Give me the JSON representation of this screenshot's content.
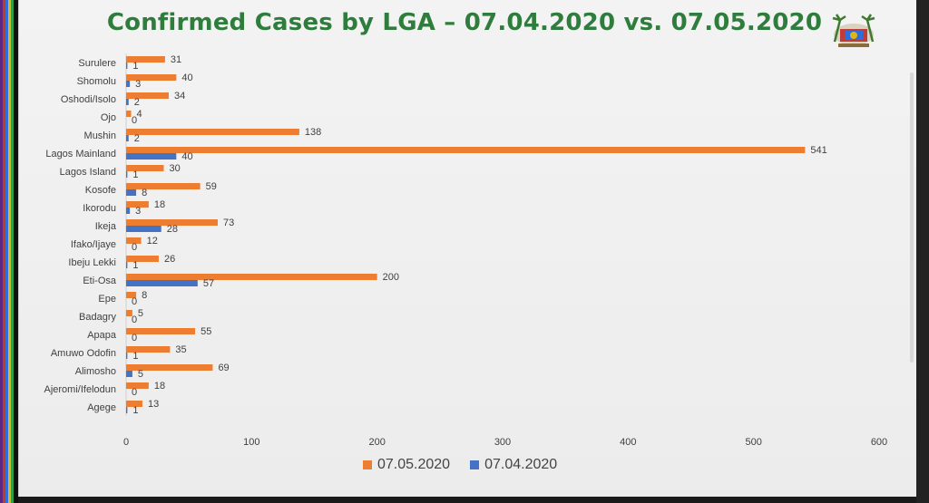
{
  "title": "Confirmed Cases by LGA – 07.04.2020 vs. 07.05.2020",
  "colors": {
    "series_new": "#ED7D31",
    "series_old": "#4472C4",
    "title": "#2f7d3c"
  },
  "chart_data": {
    "type": "bar",
    "orientation": "horizontal",
    "categories": [
      "Surulere",
      "Shomolu",
      "Oshodi/Isolo",
      "Ojo",
      "Mushin",
      "Lagos Mainland",
      "Lagos Island",
      "Kosofe",
      "Ikorodu",
      "Ikeja",
      "Ifako/Ijaye",
      "Ibeju Lekki",
      "Eti-Osa",
      "Epe",
      "Badagry",
      "Apapa",
      "Amuwo Odofin",
      "Alimosho",
      "Ajeromi/Ifelodun",
      "Agege"
    ],
    "series": [
      {
        "name": "07.05.2020",
        "values": [
          31,
          40,
          34,
          4,
          138,
          541,
          30,
          59,
          18,
          73,
          12,
          26,
          200,
          8,
          5,
          55,
          35,
          69,
          18,
          13
        ]
      },
      {
        "name": "07.04.2020",
        "values": [
          1,
          3,
          2,
          0,
          2,
          40,
          1,
          8,
          3,
          28,
          0,
          1,
          57,
          0,
          0,
          0,
          1,
          5,
          0,
          1
        ]
      }
    ],
    "xlim": [
      0,
      600
    ],
    "xticks": [
      0,
      100,
      200,
      300,
      400,
      500,
      600
    ],
    "grid": false,
    "legend": "bottom"
  }
}
